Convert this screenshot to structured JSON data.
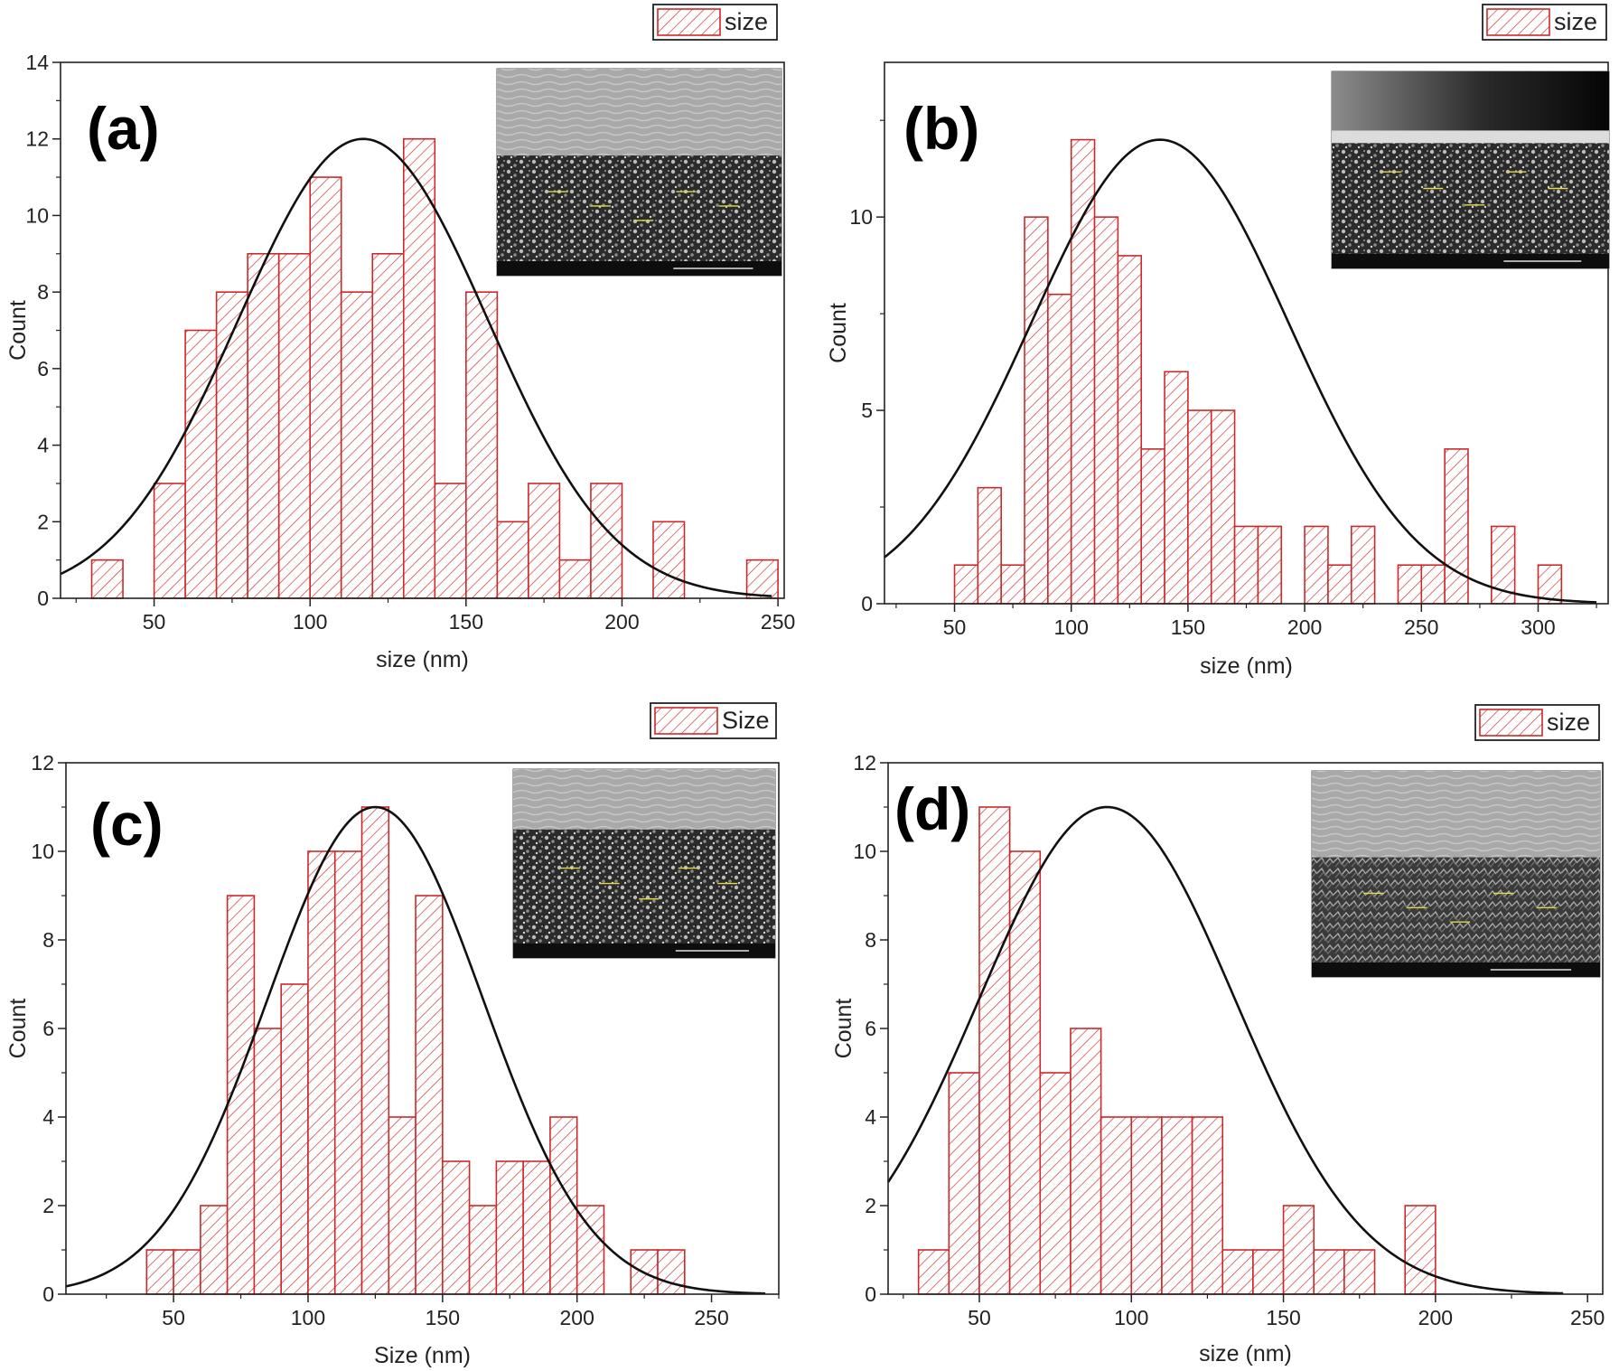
{
  "chart_data": [
    {
      "type": "bar",
      "panel_label": "(a)",
      "legend": "size",
      "xlabel": "size (nm)",
      "ylabel": "Count",
      "xlim": [
        20,
        252
      ],
      "ylim": [
        0,
        14
      ],
      "xticks": [
        50,
        100,
        150,
        200,
        250
      ],
      "yticks": [
        0,
        2,
        4,
        6,
        8,
        10,
        12,
        14
      ],
      "bin_width": 10,
      "bins": [
        [
          30,
          1
        ],
        [
          50,
          3
        ],
        [
          60,
          7
        ],
        [
          70,
          8
        ],
        [
          80,
          9
        ],
        [
          90,
          9
        ],
        [
          100,
          11
        ],
        [
          110,
          8
        ],
        [
          120,
          9
        ],
        [
          130,
          12
        ],
        [
          140,
          3
        ],
        [
          150,
          8
        ],
        [
          160,
          2
        ],
        [
          170,
          3
        ],
        [
          180,
          1
        ],
        [
          190,
          3
        ],
        [
          210,
          2
        ],
        [
          240,
          1
        ]
      ],
      "fit": {
        "name": "Gaussian fit",
        "mean": 117,
        "sigma": 40,
        "amplitude": 12,
        "x_range": [
          20,
          248
        ]
      },
      "inset": "SEM cross-section image"
    },
    {
      "type": "bar",
      "panel_label": "(b)",
      "legend": "size",
      "xlabel": "size (nm)",
      "ylabel": "Count",
      "xlim": [
        20,
        330
      ],
      "ylim": [
        0,
        14
      ],
      "xticks": [
        50,
        100,
        150,
        200,
        250,
        300
      ],
      "yticks": [
        0,
        5,
        10
      ],
      "bin_width": 10,
      "bins": [
        [
          50,
          1
        ],
        [
          60,
          3
        ],
        [
          70,
          1
        ],
        [
          80,
          10
        ],
        [
          90,
          8
        ],
        [
          100,
          12
        ],
        [
          110,
          10
        ],
        [
          120,
          9
        ],
        [
          130,
          4
        ],
        [
          140,
          6
        ],
        [
          150,
          5
        ],
        [
          160,
          5
        ],
        [
          170,
          2
        ],
        [
          180,
          2
        ],
        [
          200,
          2
        ],
        [
          210,
          1
        ],
        [
          220,
          2
        ],
        [
          240,
          1
        ],
        [
          250,
          1
        ],
        [
          260,
          4
        ],
        [
          280,
          2
        ],
        [
          300,
          1
        ]
      ],
      "fit": {
        "name": "Gaussian fit",
        "mean": 138,
        "sigma": 55,
        "amplitude": 12,
        "x_range": [
          20,
          325
        ]
      },
      "inset": "SEM cross-section image"
    },
    {
      "type": "bar",
      "panel_label": "(c)",
      "legend": "Size",
      "xlabel": "Size (nm)",
      "ylabel": "Count",
      "xlim": [
        10,
        275
      ],
      "ylim": [
        0,
        12
      ],
      "xticks": [
        50,
        100,
        150,
        200,
        250
      ],
      "yticks": [
        0,
        2,
        4,
        6,
        8,
        10,
        12
      ],
      "bin_width": 10,
      "bins": [
        [
          40,
          1
        ],
        [
          50,
          1
        ],
        [
          60,
          2
        ],
        [
          70,
          9
        ],
        [
          80,
          6
        ],
        [
          90,
          7
        ],
        [
          100,
          10
        ],
        [
          110,
          10
        ],
        [
          120,
          11
        ],
        [
          130,
          4
        ],
        [
          140,
          9
        ],
        [
          150,
          3
        ],
        [
          160,
          2
        ],
        [
          170,
          3
        ],
        [
          180,
          3
        ],
        [
          190,
          4
        ],
        [
          200,
          2
        ],
        [
          220,
          1
        ],
        [
          230,
          1
        ]
      ],
      "fit": {
        "name": "Gaussian fit",
        "mean": 125,
        "sigma": 40,
        "amplitude": 11,
        "x_range": [
          10,
          270
        ]
      },
      "inset": "SEM cross-section image"
    },
    {
      "type": "bar",
      "panel_label": "(d)",
      "legend": "size",
      "xlabel": "size (nm)",
      "ylabel": "Count",
      "xlim": [
        20,
        255
      ],
      "ylim": [
        0,
        12
      ],
      "xticks": [
        50,
        100,
        150,
        200,
        250
      ],
      "yticks": [
        0,
        2,
        4,
        6,
        8,
        10,
        12
      ],
      "bin_width": 10,
      "bins": [
        [
          30,
          1
        ],
        [
          40,
          5
        ],
        [
          50,
          11
        ],
        [
          60,
          10
        ],
        [
          70,
          5
        ],
        [
          80,
          6
        ],
        [
          90,
          4
        ],
        [
          100,
          4
        ],
        [
          110,
          4
        ],
        [
          120,
          4
        ],
        [
          130,
          1
        ],
        [
          140,
          1
        ],
        [
          150,
          2
        ],
        [
          160,
          1
        ],
        [
          170,
          1
        ],
        [
          190,
          2
        ]
      ],
      "fit": {
        "name": "Gaussian fit",
        "mean": 92,
        "sigma": 42,
        "amplitude": 11,
        "x_range": [
          20,
          242
        ]
      },
      "inset": "SEM cross-section image"
    }
  ]
}
